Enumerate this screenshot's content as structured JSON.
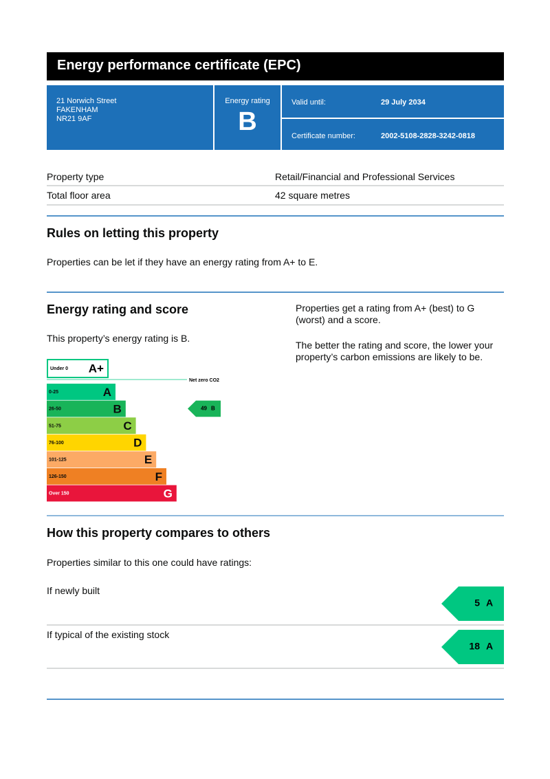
{
  "header": {
    "title": "Energy performance certificate (EPC)"
  },
  "summary": {
    "address": [
      "21 Norwich Street",
      "FAKENHAM",
      "NR21 9AF"
    ],
    "rating_label": "Energy rating",
    "rating": "B",
    "valid_label": "Valid until:",
    "valid_value": "29 July 2034",
    "cert_label": "Certificate number:",
    "cert_value": "2002-5108-2828-3242-0818"
  },
  "property": {
    "rows": [
      [
        "Property type",
        "Retail/Financial and Professional Services"
      ],
      [
        "Total floor area",
        "42 square metres"
      ]
    ]
  },
  "rules": {
    "heading": "Rules on letting this property",
    "text": "Properties can be let if they have an energy rating from A+ to E."
  },
  "energy": {
    "heading": "Energy rating and score",
    "text": "This property’s energy rating is B.",
    "side": [
      "Properties get a rating from A+ (best) to G (worst) and a score.",
      "The better the rating and score, the lower your property’s carbon emissions are likely to be."
    ],
    "chart": {
      "top_band": {
        "range": "Under 0",
        "letter": "A+",
        "color": "#00c781"
      },
      "net_zero_label": "Net zero CO2",
      "bands": [
        {
          "range": "0-25",
          "letter": "A",
          "color": "#00c781"
        },
        {
          "range": "26-50",
          "letter": "B",
          "color": "#19b459"
        },
        {
          "range": "51-75",
          "letter": "C",
          "color": "#8dce46"
        },
        {
          "range": "76-100",
          "letter": "D",
          "color": "#ffd500"
        },
        {
          "range": "101-125",
          "letter": "E",
          "color": "#fcaa65"
        },
        {
          "range": "126-150",
          "letter": "F",
          "color": "#ef8023"
        },
        {
          "range": "Over 150",
          "letter": "G",
          "color": "#e9153b"
        }
      ],
      "current": {
        "score": 49,
        "band": "B"
      }
    }
  },
  "compare": {
    "heading": "How this property compares to others",
    "text": "Properties similar to this one could have ratings:",
    "items": [
      {
        "label": "If newly built",
        "score": 5,
        "band": "A"
      },
      {
        "label": "If typical of the existing stock",
        "score": 18,
        "band": "A"
      }
    ]
  }
}
